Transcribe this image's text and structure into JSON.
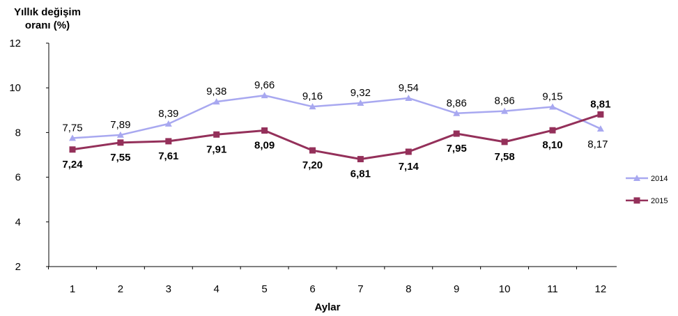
{
  "chart_data": {
    "type": "line",
    "ylabel_lines": [
      "Yıllık değişim",
      "oranı (%)"
    ],
    "xlabel": "Aylar",
    "categories": [
      "1",
      "2",
      "3",
      "4",
      "5",
      "6",
      "7",
      "8",
      "9",
      "10",
      "11",
      "12"
    ],
    "ylim": [
      2,
      12
    ],
    "yticks": [
      "2",
      "4",
      "6",
      "8",
      "10",
      "12"
    ],
    "grid": false,
    "legend_position": "right",
    "series": [
      {
        "name": "2014",
        "color": "#a8a8f0",
        "marker": "triangle",
        "values": [
          7.75,
          7.89,
          8.39,
          9.38,
          9.66,
          9.16,
          9.32,
          9.54,
          8.86,
          8.96,
          9.15,
          8.17
        ],
        "labels": [
          "7,75",
          "7,89",
          "8,39",
          "9,38",
          "9,66",
          "9,16",
          "9,32",
          "9,54",
          "8,86",
          "8,96",
          "9,15",
          "8,17"
        ]
      },
      {
        "name": "2015",
        "color": "#94305a",
        "marker": "square",
        "values": [
          7.24,
          7.55,
          7.61,
          7.91,
          8.09,
          7.2,
          6.81,
          7.14,
          7.95,
          7.58,
          8.1,
          8.81
        ],
        "labels": [
          "7,24",
          "7,55",
          "7,61",
          "7,91",
          "8,09",
          "7,20",
          "6,81",
          "7,14",
          "7,95",
          "7,58",
          "8,10",
          "8,81"
        ]
      }
    ]
  }
}
